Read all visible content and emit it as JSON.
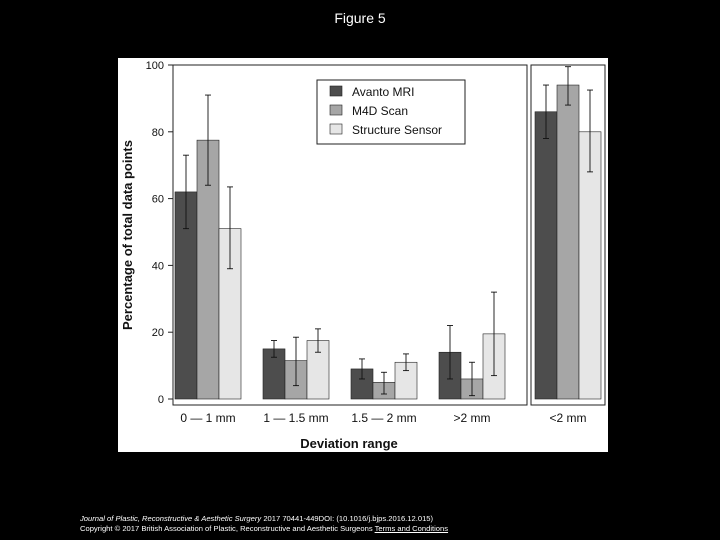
{
  "page": {
    "title": "Figure 5"
  },
  "footer": {
    "journal": "Journal of Plastic, Reconstructive & Aesthetic Surgery",
    "citation": " 2017 70441-449DOI: (10.1016/j.bjps.2016.12.015)",
    "copyright": "Copyright © 2017 British Association of Plastic, Reconstructive and Aesthetic Surgeons",
    "link_text": "Terms and Conditions"
  },
  "chart_data": {
    "type": "bar",
    "title": "",
    "xlabel": "Deviation range",
    "ylabel": "Percentage of total data points",
    "ylim": [
      0,
      100
    ],
    "yticks": [
      0,
      20,
      40,
      60,
      80,
      100
    ],
    "legend_position": "top-right",
    "grid": false,
    "categories": [
      "0 — 1 mm",
      "1 — 1.5 mm",
      "1.5 — 2 mm",
      ">2 mm",
      "<2 mm"
    ],
    "category_panels": [
      0,
      0,
      0,
      0,
      1
    ],
    "series": [
      {
        "name": "Avanto MRI",
        "color": "#4d4d4d",
        "values": [
          62,
          15,
          9,
          14,
          86
        ],
        "error_low": [
          51,
          12.5,
          6,
          6,
          78
        ],
        "error_high": [
          73,
          17.5,
          12,
          22,
          94
        ]
      },
      {
        "name": "M4D Scan",
        "color": "#a6a6a6",
        "values": [
          77.5,
          11.5,
          5,
          6,
          94
        ],
        "error_low": [
          64,
          4,
          1.5,
          1,
          88
        ],
        "error_high": [
          91,
          18.5,
          8,
          11,
          99.5
        ]
      },
      {
        "name": "Structure Sensor",
        "color": "#e6e6e6",
        "values": [
          51,
          17.5,
          11,
          19.5,
          80
        ],
        "error_low": [
          39,
          14,
          8.5,
          7,
          68
        ],
        "error_high": [
          63.5,
          21,
          13.5,
          32,
          92.5
        ]
      }
    ]
  }
}
